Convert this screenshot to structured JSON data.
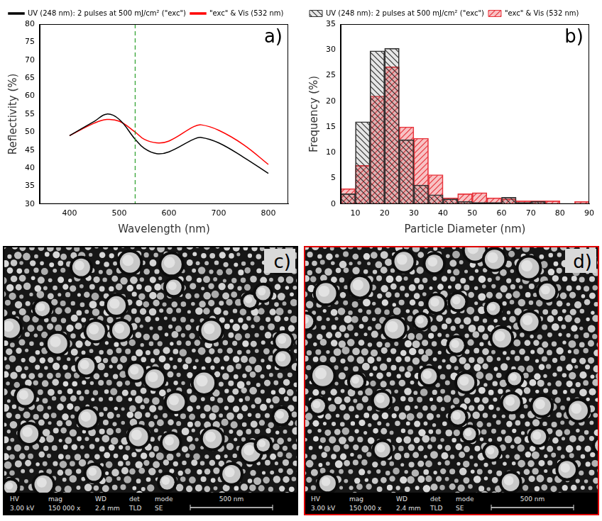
{
  "chart_data": [
    {
      "type": "line",
      "panel": "a)",
      "x_label": "Wavelength (nm)",
      "y_label": "Reflectivity (%)",
      "x": [
        400,
        450,
        475,
        500,
        532,
        550,
        575,
        600,
        650,
        665,
        700,
        750,
        800
      ],
      "series": [
        {
          "name": "UV (248 nm): 2 pulses at 500 mJ/cm² (\"exc\")",
          "color": "#000000",
          "line_style": "solid",
          "values": [
            49,
            53,
            55,
            53.5,
            48,
            45.5,
            44,
            44.5,
            48,
            48.5,
            47,
            43,
            38.5
          ]
        },
        {
          "name": "\"exc\" & Vis (532 nm)",
          "color": "#ff0000",
          "line_style": "solid",
          "values": [
            49,
            52.5,
            53.5,
            53,
            50,
            48,
            47,
            47.5,
            51.5,
            52,
            50.5,
            46.5,
            41
          ]
        }
      ],
      "vline": {
        "x": 532,
        "color": "#2ca02c",
        "line_style": "dashed"
      },
      "xlim": [
        340,
        840
      ],
      "xticks": [
        400,
        500,
        600,
        700,
        800
      ],
      "ylim": [
        30,
        80
      ],
      "yticks": [
        30,
        35,
        40,
        45,
        50,
        55,
        60,
        65,
        70,
        75,
        80
      ],
      "grid": false,
      "legend": "top"
    },
    {
      "type": "histogram",
      "panel": "b)",
      "x_label": "Particle Diameter (nm)",
      "y_label": "Frequency (%)",
      "bins": [
        5,
        10,
        15,
        20,
        25,
        30,
        35,
        40,
        45,
        50,
        55,
        60,
        65,
        70,
        75,
        80,
        85,
        90
      ],
      "series": [
        {
          "name": "UV (248 nm): 2 pulses at 500 mJ/cm² (\"exc\")",
          "color": "#333333",
          "marker": "hatch",
          "values": [
            2,
            16,
            29.8,
            30.3,
            12.5,
            3.7,
            1.8,
            1,
            0.5,
            0.3,
            0.3,
            1.3,
            0.3,
            0.5,
            0,
            0,
            0
          ]
        },
        {
          "name": "\"exc\" & Vis (532 nm)",
          "color": "#e8343c",
          "marker": "hatch",
          "values": [
            3,
            7.5,
            21,
            26.7,
            15,
            12.8,
            5.7,
            1.2,
            2,
            2.2,
            1.2,
            1,
            0.6,
            0.6,
            0.6,
            0,
            0.5
          ]
        }
      ],
      "xlim": [
        5,
        90
      ],
      "xticks": [
        10,
        20,
        30,
        40,
        50,
        60,
        70,
        80,
        90
      ],
      "ylim": [
        0,
        35
      ],
      "yticks": [
        0,
        5,
        10,
        15,
        20,
        25,
        30,
        35
      ],
      "grid": false,
      "legend": "top"
    }
  ],
  "images": [
    {
      "panel": "c)",
      "color": "#000000",
      "info_bar": {
        "headers": [
          "HV",
          "mag",
          "WD",
          "det",
          "mode"
        ],
        "values": [
          "3.00 kV",
          "150 000 x",
          "2.4 mm",
          "TLD",
          "SE"
        ],
        "scale_bar": "500 nm"
      }
    },
    {
      "panel": "d)",
      "color": "#e00000",
      "info_bar": {
        "headers": [
          "HV",
          "mag",
          "WD",
          "det",
          "mode"
        ],
        "values": [
          "3.00 kV",
          "150 000 x",
          "2.4 mm",
          "TLD",
          "SE"
        ],
        "scale_bar": "500 nm"
      }
    }
  ]
}
